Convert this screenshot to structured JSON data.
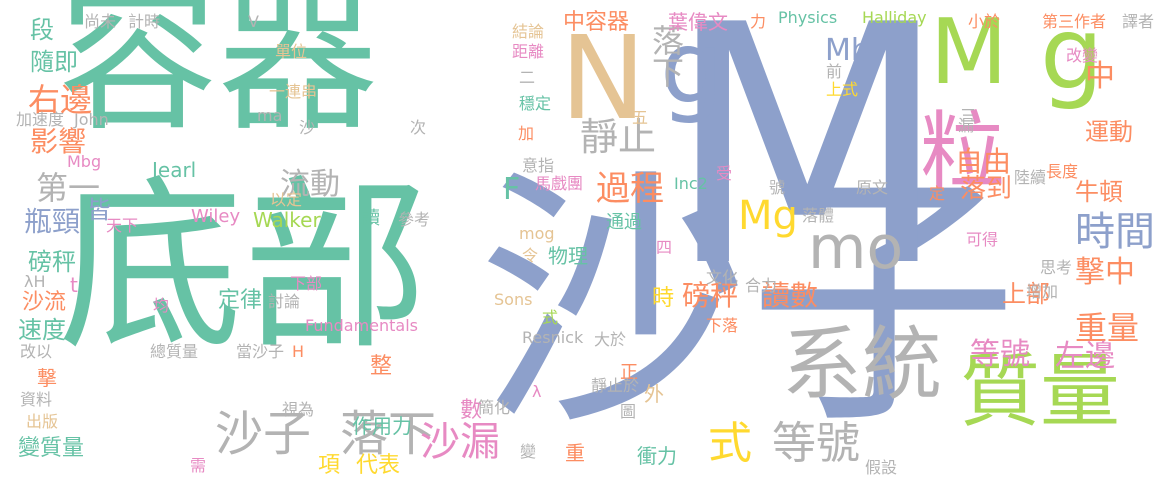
{
  "colors": {
    "teal": "#66c2a5",
    "orange": "#fc8d62",
    "blue": "#8da0cb",
    "pink": "#e78ac3",
    "green": "#a6d854",
    "yellow": "#ffd92f",
    "tan": "#e5c494",
    "gray": "#b3b3b3"
  },
  "words": [
    {
      "text": "沙子"
    },
    {
      "text": "M"
    },
    {
      "text": "容器"
    },
    {
      "text": "底部"
    },
    {
      "text": "N"
    },
    {
      "text": "g"
    },
    {
      "text": "M"
    },
    {
      "text": "g"
    },
    {
      "text": "粒"
    },
    {
      "text": "質量"
    },
    {
      "text": "系統"
    },
    {
      "text": "mo"
    },
    {
      "text": "落下"
    },
    {
      "text": "沙子"
    },
    {
      "text": "式"
    },
    {
      "text": "等號"
    },
    {
      "text": "沙漏"
    },
    {
      "text": "過程"
    },
    {
      "text": "靜止"
    },
    {
      "text": "時間"
    },
    {
      "text": "中"
    },
    {
      "text": "Mb"
    },
    {
      "text": "Mg"
    },
    {
      "text": "落下"
    },
    {
      "text": "重量"
    },
    {
      "text": "撃中"
    },
    {
      "text": "等號"
    },
    {
      "text": "左邊"
    },
    {
      "text": "磅秤"
    },
    {
      "text": "讀數"
    },
    {
      "text": "右邊"
    },
    {
      "text": "第一"
    },
    {
      "text": "流動"
    },
    {
      "text": "影響"
    },
    {
      "text": "自由"
    },
    {
      "text": "落到"
    },
    {
      "text": "運動"
    },
    {
      "text": "牛頓"
    },
    {
      "text": "上部"
    },
    {
      "text": "F"
    },
    {
      "text": "Physics"
    },
    {
      "text": "Halliday"
    },
    {
      "text": "葉偉文"
    },
    {
      "text": "力"
    },
    {
      "text": "小於"
    },
    {
      "text": "第三作者"
    },
    {
      "text": "譯者"
    },
    {
      "text": "中容器"
    },
    {
      "text": "結論"
    },
    {
      "text": "距離"
    },
    {
      "text": "計時"
    },
    {
      "text": "尚未"
    },
    {
      "text": "V"
    },
    {
      "text": "段"
    },
    {
      "text": "隨即"
    },
    {
      "text": "單位"
    },
    {
      "text": "一連串"
    },
    {
      "text": "John"
    },
    {
      "text": "加速度"
    },
    {
      "text": "ma"
    },
    {
      "text": "沙"
    },
    {
      "text": "次"
    },
    {
      "text": "Jearl"
    },
    {
      "text": "Mbg"
    },
    {
      "text": "瓶頸"
    },
    {
      "text": "皆"
    },
    {
      "text": "天下"
    },
    {
      "text": "Wiley"
    },
    {
      "text": "Walker"
    },
    {
      "text": "讀"
    },
    {
      "text": "以定"
    },
    {
      "text": "參考"
    },
    {
      "text": "磅秤"
    },
    {
      "text": "沙流"
    },
    {
      "text": "t"
    },
    {
      "text": "λH"
    },
    {
      "text": "速度"
    },
    {
      "text": "改以"
    },
    {
      "text": "撃"
    },
    {
      "text": "資料"
    },
    {
      "text": "出版"
    },
    {
      "text": "變質量"
    },
    {
      "text": "需"
    },
    {
      "text": "總質量"
    },
    {
      "text": "當沙子"
    },
    {
      "text": "H"
    },
    {
      "text": "定律"
    },
    {
      "text": "討論"
    },
    {
      "text": "Fundamentals"
    },
    {
      "text": "均"
    },
    {
      "text": "下部"
    },
    {
      "text": "作用力"
    },
    {
      "text": "整"
    },
    {
      "text": "視為"
    },
    {
      "text": "項"
    },
    {
      "text": "代表"
    },
    {
      "text": "數"
    },
    {
      "text": "簡化"
    },
    {
      "text": "λ"
    },
    {
      "text": "正"
    },
    {
      "text": "外"
    },
    {
      "text": "圖"
    },
    {
      "text": "靜止於"
    },
    {
      "text": "大於"
    },
    {
      "text": "時"
    },
    {
      "text": "Sons"
    },
    {
      "text": "Resnick"
    },
    {
      "text": "式"
    },
    {
      "text": "物理"
    },
    {
      "text": "令"
    },
    {
      "text": "mog"
    },
    {
      "text": "通過"
    },
    {
      "text": "四"
    },
    {
      "text": "文化"
    },
    {
      "text": "合力"
    },
    {
      "text": "下落"
    },
    {
      "text": "衝力"
    },
    {
      "text": "變"
    },
    {
      "text": "重"
    },
    {
      "text": "假設"
    },
    {
      "text": "Inc2"
    },
    {
      "text": "馬戲團"
    },
    {
      "text": "意指"
    },
    {
      "text": "受"
    },
    {
      "text": "號"
    },
    {
      "text": "落體"
    },
    {
      "text": "原文"
    },
    {
      "text": "定"
    },
    {
      "text": "陸續"
    },
    {
      "text": "長度"
    },
    {
      "text": "可得"
    },
    {
      "text": "思考"
    },
    {
      "text": "增加"
    },
    {
      "text": "改變"
    },
    {
      "text": "前"
    },
    {
      "text": "上式"
    },
    {
      "text": "漏"
    },
    {
      "text": "三"
    },
    {
      "text": "二"
    },
    {
      "text": "穩定"
    },
    {
      "text": "五"
    },
    {
      "text": "加"
    }
  ]
}
